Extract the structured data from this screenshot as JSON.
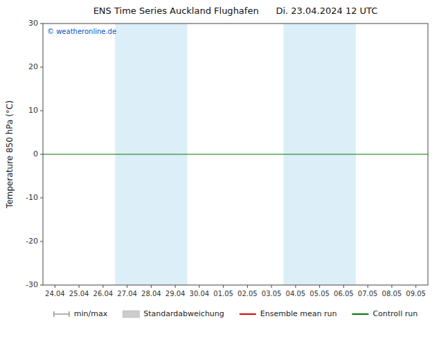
{
  "chart_data": {
    "type": "line",
    "title": "ENS Time Series Auckland Flughafen      Di. 23.04.2024 12 UTC",
    "y_label": "Temperature 850 hPa (°C)",
    "categories": [
      "24.04",
      "25.04",
      "26.04",
      "27.04",
      "28.04",
      "29.04",
      "30.04",
      "01.05",
      "02.05",
      "03.05",
      "04.05",
      "05.05",
      "06.05",
      "07.05",
      "08.05",
      "09.05"
    ],
    "ylim": [
      -30,
      30
    ],
    "yticks": [
      -30,
      -20,
      -10,
      0,
      10,
      20,
      30
    ],
    "grid": false,
    "legend": "bottom",
    "series": [
      {
        "name": "min/max",
        "type": "range",
        "color": "#999999"
      },
      {
        "name": "Standardabweichung",
        "type": "area",
        "color": "#cccccc"
      },
      {
        "name": "Ensemble mean run",
        "type": "line",
        "color": "#dd0000"
      },
      {
        "name": "Controll run",
        "type": "line",
        "color": "#007700"
      }
    ],
    "bands": [
      {
        "from": "27.04",
        "to": "29.04",
        "color": "#dceef8"
      },
      {
        "from": "04.05",
        "to": "06.05",
        "color": "#dceef8"
      }
    ],
    "reference_lines": [
      {
        "value": 0,
        "color": "#007700"
      }
    ],
    "annotations": [
      {
        "text": "© weatheronline.de",
        "color": "#0055cc"
      }
    ]
  }
}
